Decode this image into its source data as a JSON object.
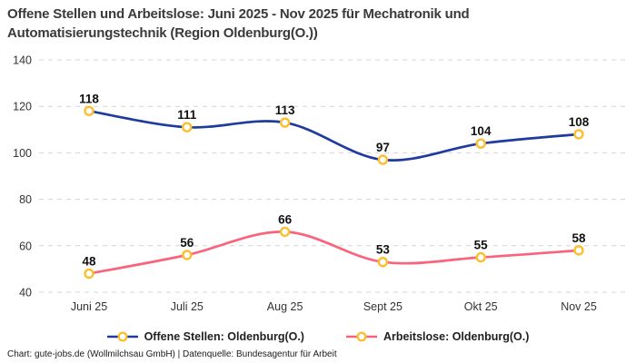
{
  "chart_data": {
    "type": "line",
    "title": "Offene Stellen und Arbeitslose: Juni 2025 - Nov 2025 für Mechatronik und Automatisierungstechnik (Region Oldenburg(O.))",
    "categories": [
      "Juni 25",
      "Juli 25",
      "Aug 25",
      "Sept 25",
      "Okt 25",
      "Nov 25"
    ],
    "series": [
      {
        "name": "Offene Stellen: Oldenburg(O.)",
        "color": "#1e3b9d",
        "values": [
          118,
          111,
          113,
          97,
          104,
          108
        ]
      },
      {
        "name": "Arbeitslose: Oldenburg(O.)",
        "color": "#f9637c",
        "values": [
          48,
          56,
          66,
          53,
          55,
          58
        ]
      }
    ],
    "yticks": [
      40,
      60,
      80,
      100,
      120,
      140
    ],
    "ylim": [
      40,
      140
    ],
    "grid": "horizontal-dashed",
    "legend_position": "bottom",
    "marker": {
      "fill": "#ffffff",
      "stroke": "#fcbe2c",
      "radius": 4.5
    },
    "colors": {
      "grid": "#d4d4d4",
      "tick_label": "#333333",
      "data_label": "#111111",
      "title": "#3a3a3a"
    }
  },
  "footer": {
    "text": "Chart: gute-jobs.de (Wollmilchsau GmbH) | Datenquelle: Bundesagentur für Arbeit"
  }
}
